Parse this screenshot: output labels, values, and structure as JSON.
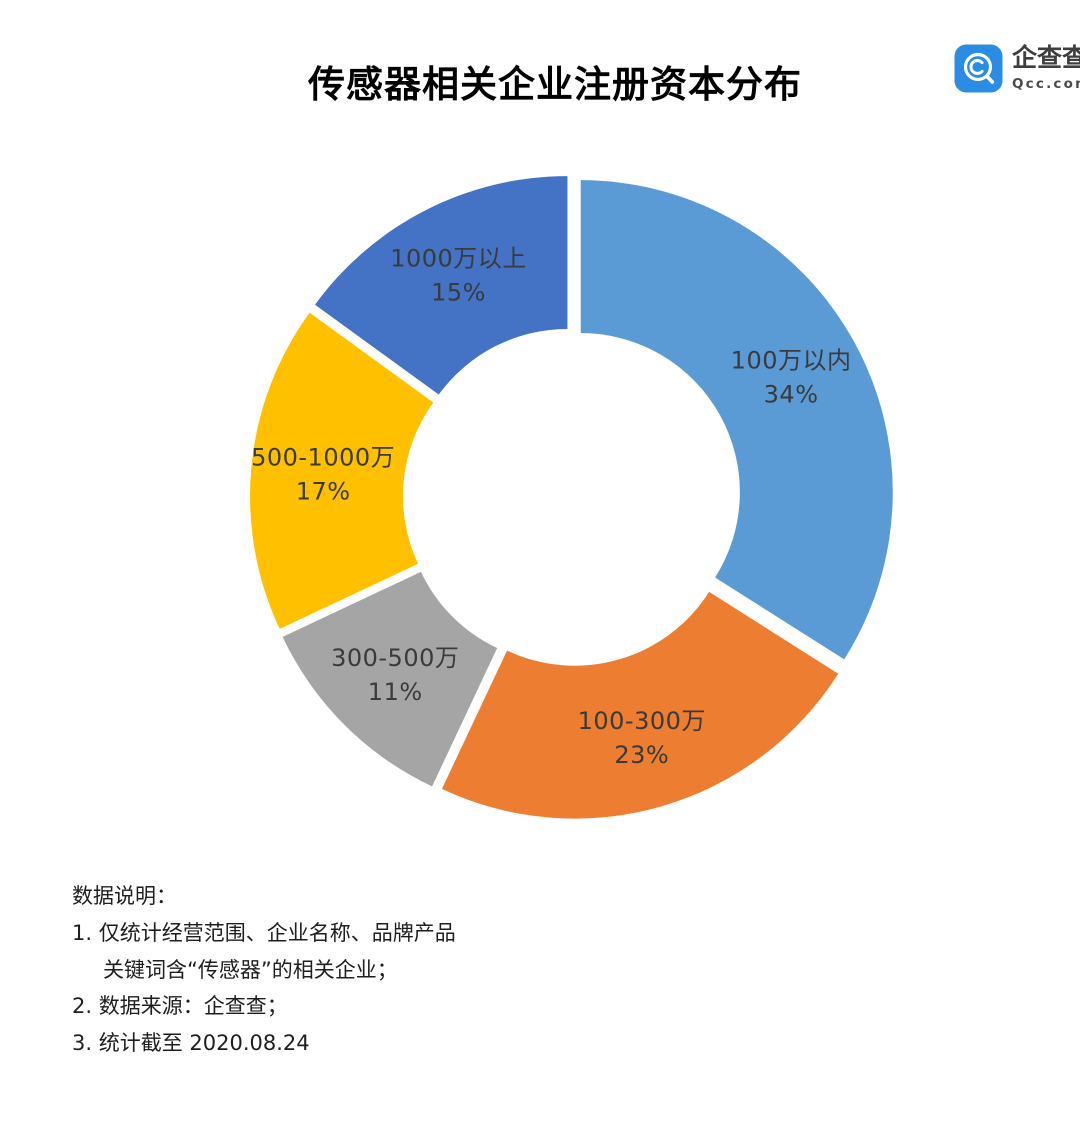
{
  "title": "传感器相关企业注册资本分布",
  "logo": {
    "brand": "企查查",
    "domain": "Qcc.com",
    "color": "#2A8CE3"
  },
  "chart_data": {
    "type": "pie",
    "subtype": "exploded-donut",
    "title": "传感器相关企业注册资本分布",
    "categories": [
      "100万以内",
      "100-300万",
      "300-500万",
      "500-1000万",
      "1000万以上"
    ],
    "values": [
      34,
      23,
      11,
      17,
      15
    ],
    "unit": "%",
    "colors": [
      "#5B9BD5",
      "#ED7D31",
      "#A5A5A5",
      "#FFC000",
      "#4472C4"
    ],
    "label_color": "#3A3A3A",
    "start_angle_deg": 0,
    "direction": "clockwise",
    "inner_radius_ratio": 0.51,
    "legend": "none",
    "grid": "off"
  },
  "notes": {
    "lines": [
      {
        "text": "数据说明：",
        "indent": 0
      },
      {
        "text": "1. 仅统计经营范围、企业名称、品牌产品",
        "indent": 0
      },
      {
        "text": "关键词含“传感器”的相关企业；",
        "indent": 1
      },
      {
        "text": "2. 数据来源：企查查；",
        "indent": 0
      },
      {
        "text": "3. 统计截至 2020.08.24",
        "indent": 0
      }
    ]
  }
}
